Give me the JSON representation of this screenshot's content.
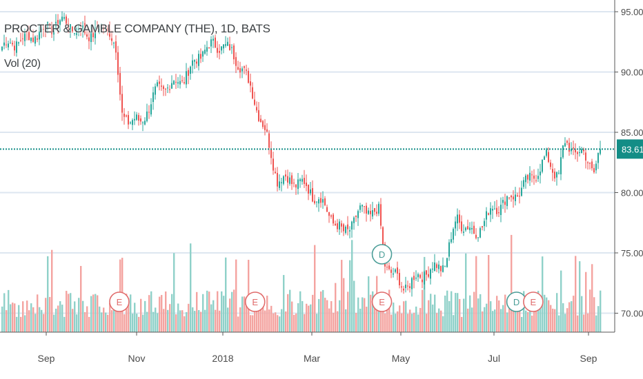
{
  "chart_data": {
    "type": "candlestick",
    "title": "PROCTER & GAMBLE COMPANY (THE), 1D, BATS",
    "volume_label": "Vol (20)",
    "ylim": [
      69.5,
      96.0
    ],
    "y_ticks": [
      "95.00",
      "90.00",
      "85.00",
      "80.00",
      "75.00",
      "70.00"
    ],
    "x_ticks": [
      "Sep",
      "Nov",
      "2018",
      "Mar",
      "May",
      "Jul",
      "Sep"
    ],
    "last_price": "83.61",
    "grid": true,
    "colors": {
      "up": "#26a69a",
      "down": "#ef5350",
      "up_volume": "#8fd1c9",
      "down_volume": "#f4a3a0",
      "grid": "#dde6f0",
      "last_line": "#138d86"
    },
    "price_path": [
      {
        "x": 0,
        "price": 92.1
      },
      {
        "x": 0.05,
        "price": 93.0
      },
      {
        "x": 0.1,
        "price": 94.2
      },
      {
        "x": 0.14,
        "price": 93.2
      },
      {
        "x": 0.18,
        "price": 93.6
      },
      {
        "x": 0.19,
        "price": 91.9
      },
      {
        "x": 0.2,
        "price": 86.4
      },
      {
        "x": 0.23,
        "price": 85.7
      },
      {
        "x": 0.26,
        "price": 88.5
      },
      {
        "x": 0.3,
        "price": 89.3
      },
      {
        "x": 0.34,
        "price": 92.0
      },
      {
        "x": 0.37,
        "price": 92.3
      },
      {
        "x": 0.4,
        "price": 90.6
      },
      {
        "x": 0.42,
        "price": 88.0
      },
      {
        "x": 0.44,
        "price": 85.0
      },
      {
        "x": 0.46,
        "price": 81.2
      },
      {
        "x": 0.5,
        "price": 80.8
      },
      {
        "x": 0.53,
        "price": 79.5
      },
      {
        "x": 0.57,
        "price": 76.5
      },
      {
        "x": 0.6,
        "price": 78.5
      },
      {
        "x": 0.63,
        "price": 78.3
      },
      {
        "x": 0.64,
        "price": 74.2
      },
      {
        "x": 0.67,
        "price": 72.1
      },
      {
        "x": 0.71,
        "price": 73.5
      },
      {
        "x": 0.74,
        "price": 74.0
      },
      {
        "x": 0.76,
        "price": 77.9
      },
      {
        "x": 0.79,
        "price": 76.5
      },
      {
        "x": 0.82,
        "price": 78.7
      },
      {
        "x": 0.85,
        "price": 79.5
      },
      {
        "x": 0.88,
        "price": 80.9
      },
      {
        "x": 0.91,
        "price": 82.8
      },
      {
        "x": 0.93,
        "price": 81.4
      },
      {
        "x": 0.94,
        "price": 84.0
      },
      {
        "x": 0.97,
        "price": 83.2
      },
      {
        "x": 0.99,
        "price": 81.9
      },
      {
        "x": 1.0,
        "price": 83.61
      }
    ],
    "events": [
      {
        "label": "E",
        "type": "earnings",
        "x_fraction": 0.196
      },
      {
        "label": "E",
        "type": "earnings",
        "x_fraction": 0.423
      },
      {
        "label": "E",
        "type": "earnings",
        "x_fraction": 0.635
      },
      {
        "label": "D",
        "type": "dividend",
        "x_fraction": 0.635
      },
      {
        "label": "D",
        "type": "dividend",
        "x_fraction": 0.86
      },
      {
        "label": "E",
        "type": "earnings",
        "x_fraction": 0.888
      }
    ]
  }
}
